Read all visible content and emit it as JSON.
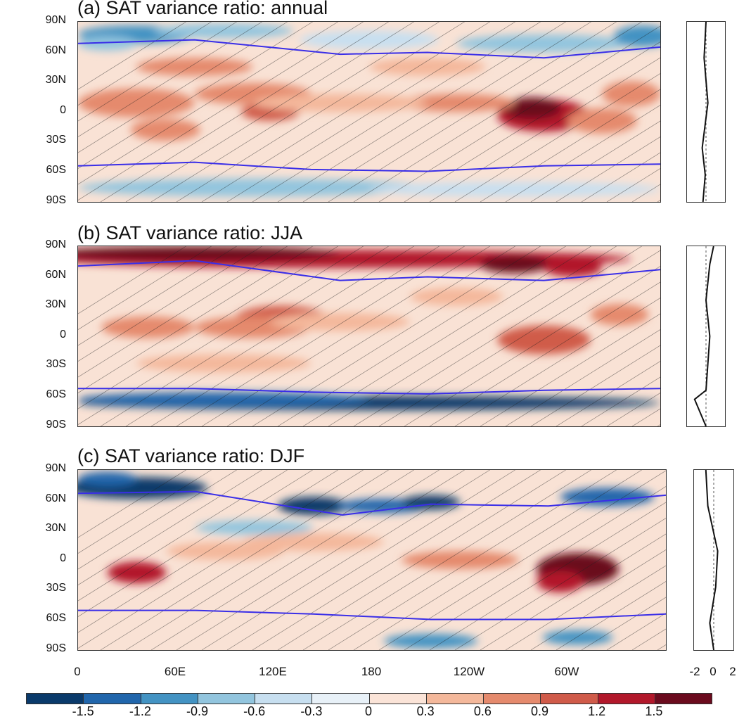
{
  "panels": [
    {
      "title": "(a) SAT variance ratio: annual"
    },
    {
      "title": "(b) SAT variance ratio: JJA"
    },
    {
      "title": "(c) SAT variance ratio: DJF"
    }
  ],
  "lat_labels": [
    "90N",
    "60N",
    "30N",
    "0",
    "30S",
    "60S",
    "90S"
  ],
  "lon_labels": [
    "0",
    "60E",
    "120E",
    "180",
    "120W",
    "60W"
  ],
  "side_axis_labels": [
    "-2",
    "0",
    "2"
  ],
  "colorbar": {
    "labels": [
      "-1.5",
      "-1.2",
      "-0.9",
      "-0.6",
      "-0.3",
      "0",
      "0.3",
      "0.6",
      "0.9",
      "1.2",
      "1.5"
    ],
    "colors": [
      "#0a3a6b",
      "#2166ac",
      "#4393c3",
      "#92c5de",
      "#c7dff0",
      "#e8f1f8",
      "#fbe4d8",
      "#f4b89b",
      "#e58a6d",
      "#d05b4a",
      "#b2182b",
      "#6b0b1e"
    ]
  },
  "colors": {
    "sea_ice_edge": "#3a2ee8",
    "sea_ice_edge_alt": "#c54bd8",
    "coastline": "#333333",
    "profile_line": "#111111"
  }
}
